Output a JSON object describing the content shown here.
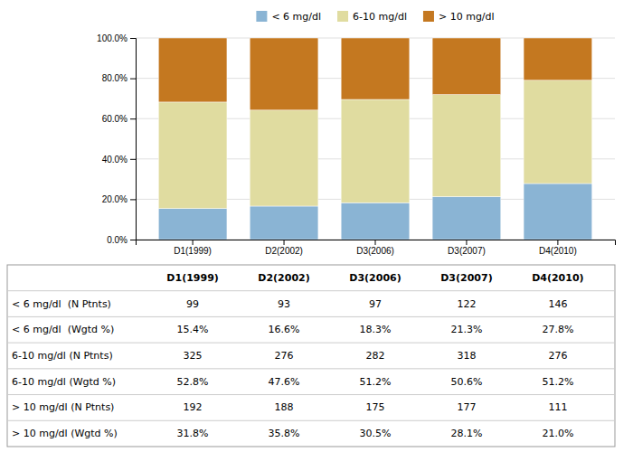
{
  "chart_data": {
    "type": "bar",
    "stacked": true,
    "grid": true,
    "legend": "top",
    "categories": [
      "D1(1999)",
      "D2(2002)",
      "D3(2006)",
      "D3(2007)",
      "D4(2010)"
    ],
    "series": [
      {
        "name": "< 6 mg/dl",
        "color": "#8AB4D4",
        "values": [
          15.4,
          16.6,
          18.3,
          21.3,
          27.8
        ]
      },
      {
        "name": "6-10 mg/dl",
        "color": "#E0DCA0",
        "values": [
          52.8,
          47.6,
          51.2,
          50.6,
          51.2
        ]
      },
      {
        "name": "> 10 mg/dl",
        "color": "#C47820",
        "values": [
          31.8,
          35.8,
          30.5,
          28.1,
          21.0
        ]
      }
    ],
    "ylim": [
      0,
      100
    ],
    "yticks": [
      {
        "value": 0,
        "label": "0.0%"
      },
      {
        "value": 20,
        "label": "20.0%"
      },
      {
        "value": 40,
        "label": "40.0%"
      },
      {
        "value": 60,
        "label": "60.0%"
      },
      {
        "value": 80,
        "label": "80.0%"
      },
      {
        "value": 100,
        "label": "100.0%"
      }
    ],
    "table": {
      "row_labels": [
        "< 6 mg/dl  (N Ptnts)",
        "< 6 mg/dl  (Wgtd %)",
        "6-10 mg/dl (N Ptnts)",
        "6-10 mg/dl (Wgtd %)",
        "> 10 mg/dl (N Ptnts)",
        "> 10 mg/dl (Wgtd %)"
      ],
      "cells": [
        [
          "99",
          "93",
          "97",
          "122",
          "146"
        ],
        [
          "15.4%",
          "16.6%",
          "18.3%",
          "21.3%",
          "27.8%"
        ],
        [
          "325",
          "276",
          "282",
          "318",
          "276"
        ],
        [
          "52.8%",
          "47.6%",
          "51.2%",
          "50.6%",
          "51.2%"
        ],
        [
          "192",
          "188",
          "175",
          "177",
          "111"
        ],
        [
          "31.8%",
          "35.8%",
          "30.5%",
          "28.1%",
          "21.0%"
        ]
      ]
    }
  }
}
